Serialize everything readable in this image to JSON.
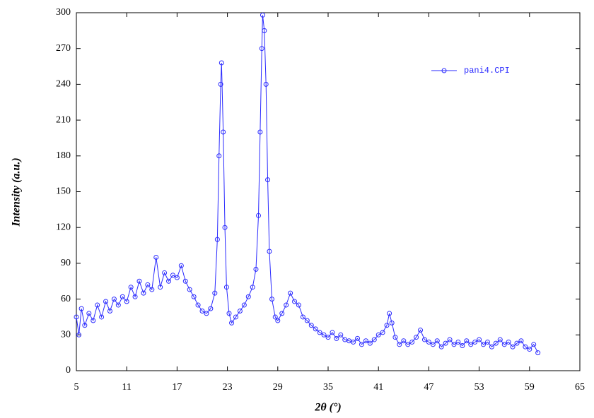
{
  "chart_data": {
    "type": "line",
    "xlabel": "2θ (°)",
    "ylabel": "Intensity (a.u.)",
    "x": [
      5,
      5.3,
      5.6,
      6,
      6.5,
      7,
      7.5,
      8,
      8.5,
      9,
      9.5,
      10,
      10.5,
      11,
      11.5,
      12,
      12.5,
      13,
      13.5,
      14,
      14.5,
      15,
      15.5,
      16,
      16.5,
      17,
      17.5,
      18,
      18.5,
      19,
      19.5,
      20,
      20.5,
      21,
      21.5,
      21.8,
      22,
      22.2,
      22.3,
      22.5,
      22.7,
      22.9,
      23.2,
      23.5,
      24,
      24.5,
      25,
      25.5,
      26,
      26.4,
      26.7,
      26.9,
      27.1,
      27.2,
      27.4,
      27.6,
      27.8,
      28,
      28.3,
      28.7,
      29,
      29.5,
      30,
      30.5,
      31,
      31.5,
      32,
      32.5,
      33,
      33.5,
      34,
      34.5,
      35,
      35.5,
      36,
      36.5,
      37,
      37.5,
      38,
      38.5,
      39,
      39.5,
      40,
      40.5,
      41,
      41.5,
      42,
      42.3,
      42.6,
      43,
      43.5,
      44,
      44.5,
      45,
      45.5,
      46,
      46.5,
      47,
      47.5,
      48,
      48.5,
      49,
      49.5,
      50,
      50.5,
      51,
      51.5,
      52,
      52.5,
      53,
      53.5,
      54,
      54.5,
      55,
      55.5,
      56,
      56.5,
      57,
      57.5,
      58,
      58.5,
      59,
      59.5,
      60
    ],
    "series": [
      {
        "name": "pani4.CPI",
        "color": "#2a2aff",
        "values": [
          45,
          30,
          52,
          38,
          48,
          42,
          55,
          45,
          58,
          50,
          60,
          55,
          62,
          58,
          70,
          62,
          75,
          65,
          72,
          68,
          95,
          70,
          82,
          75,
          80,
          78,
          88,
          75,
          68,
          62,
          55,
          50,
          48,
          52,
          65,
          110,
          180,
          240,
          258,
          200,
          120,
          70,
          48,
          40,
          45,
          50,
          55,
          62,
          70,
          85,
          130,
          200,
          270,
          298,
          285,
          240,
          160,
          100,
          60,
          45,
          42,
          48,
          55,
          65,
          58,
          55,
          45,
          42,
          38,
          35,
          32,
          30,
          28,
          32,
          27,
          30,
          26,
          25,
          24,
          27,
          22,
          25,
          23,
          26,
          30,
          32,
          38,
          48,
          40,
          28,
          22,
          25,
          22,
          24,
          28,
          34,
          26,
          24,
          22,
          25,
          20,
          23,
          26,
          22,
          24,
          21,
          25,
          22,
          24,
          26,
          22,
          24,
          20,
          23,
          26,
          22,
          24,
          20,
          23,
          25,
          20,
          18,
          22,
          15
        ]
      }
    ],
    "xlim": [
      5,
      65
    ],
    "ylim": [
      0,
      300
    ],
    "xticks": [
      5,
      11,
      17,
      23,
      29,
      35,
      41,
      47,
      53,
      59,
      65
    ],
    "yticks": [
      0,
      30,
      60,
      90,
      120,
      150,
      180,
      210,
      240,
      270,
      300
    ],
    "legend": "upper right",
    "grid": false
  }
}
